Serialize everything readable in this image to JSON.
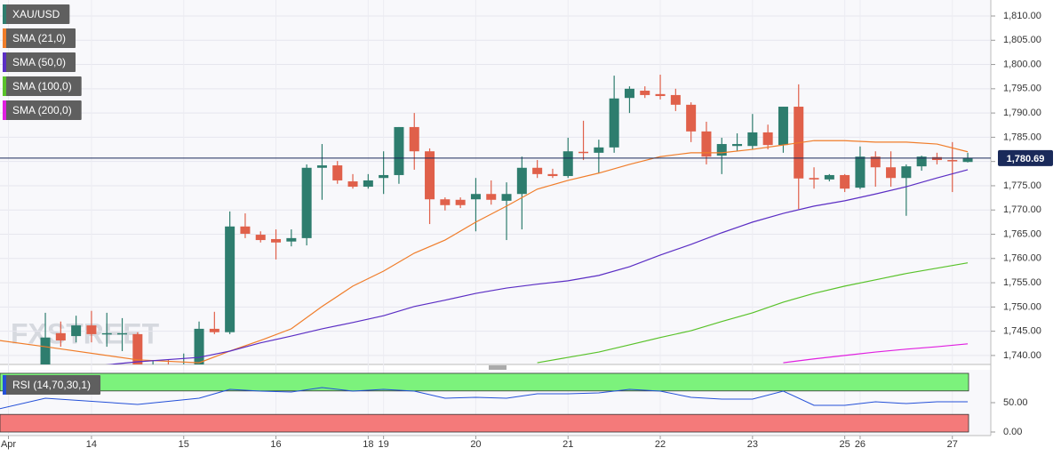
{
  "chart_data": {
    "type": "candlestick",
    "watermark": "FXSTREET",
    "xlim": [
      -2.95,
      61.5
    ],
    "ylim": [
      1738.15,
      1813.3
    ],
    "grid": true,
    "yticks": [
      {
        "value": 1810,
        "label": "1,810.00"
      },
      {
        "value": 1805,
        "label": "1,805.00"
      },
      {
        "value": 1800,
        "label": "1,800.00"
      },
      {
        "value": 1795,
        "label": "1,795.00"
      },
      {
        "value": 1790,
        "label": "1,790.00"
      },
      {
        "value": 1785,
        "label": "1,785.00"
      },
      {
        "value": 1780,
        "label": "1,780.00"
      },
      {
        "value": 1775,
        "label": "1,775.00"
      },
      {
        "value": 1770,
        "label": "1,770.00"
      },
      {
        "value": 1765,
        "label": "1,765.00"
      },
      {
        "value": 1760,
        "label": "1,760.00"
      },
      {
        "value": 1755,
        "label": "1,755.00"
      },
      {
        "value": 1750,
        "label": "1,750.00"
      },
      {
        "value": 1745,
        "label": "1,745.00"
      },
      {
        "value": 1740,
        "label": "1,740.00"
      }
    ],
    "xticks": [
      {
        "value": -2.4,
        "label": "Apr"
      },
      {
        "value": 3,
        "label": "14"
      },
      {
        "value": 9,
        "label": "15"
      },
      {
        "value": 15,
        "label": "16"
      },
      {
        "value": 21,
        "label": "18"
      },
      {
        "value": 22,
        "label": "19"
      },
      {
        "value": 28,
        "label": "20"
      },
      {
        "value": 34,
        "label": "21"
      },
      {
        "value": 40,
        "label": "22"
      },
      {
        "value": 46,
        "label": "23"
      },
      {
        "value": 52,
        "label": "25"
      },
      {
        "value": 53,
        "label": "26"
      },
      {
        "value": 59,
        "label": "27"
      }
    ],
    "candles": {
      "name": "XAU/USD",
      "color": "#2e7d6e",
      "color_up": "#2e7d6e",
      "color_down": "#e0604a",
      "open": [
        1736.3,
        1744.6,
        1744.0,
        1746.2,
        1744.4,
        1744.4,
        1744.4,
        1737.0,
        1737.4,
        1737.3,
        1738.0,
        1745.5,
        1744.8,
        1766.6,
        1764.9,
        1764.0,
        1763.5,
        1764.2,
        1778.7,
        1779.2,
        1775.9,
        1774.8,
        1776.6,
        1777.2,
        1787.1,
        1782.1,
        1772.2,
        1772.1,
        1772.2,
        1773.3,
        1771.9,
        1773.3,
        1778.7,
        1777.4,
        1777.0,
        1782.0,
        1781.8,
        1782.9,
        1793.1,
        1794.6,
        1793.9,
        1793.7,
        1791.7,
        1786.2,
        1781.2,
        1783.2,
        1783.2,
        1786.0,
        1783.4,
        1791.3,
        1776.6,
        1776.3,
        1777.2,
        1774.6,
        1781.0,
        1778.8,
        1776.6,
        1779.0,
        1780.9,
        1780.3,
        1779.9
      ],
      "close": [
        1743.7,
        1743.1,
        1746.2,
        1744.4,
        1744.6,
        1744.6,
        1737.5,
        1737.5,
        1737.2,
        1738.0,
        1745.5,
        1744.8,
        1766.6,
        1765.1,
        1763.8,
        1763.3,
        1764.2,
        1778.7,
        1779.2,
        1776.1,
        1774.8,
        1776.1,
        1777.2,
        1787.1,
        1782.1,
        1772.2,
        1771.0,
        1771.0,
        1773.3,
        1772.1,
        1773.3,
        1778.7,
        1777.4,
        1777.0,
        1782.1,
        1781.8,
        1782.9,
        1793.0,
        1795.0,
        1793.7,
        1793.5,
        1791.7,
        1786.2,
        1781.0,
        1783.6,
        1783.6,
        1786.0,
        1783.4,
        1791.3,
        1776.5,
        1776.3,
        1777.2,
        1774.4,
        1781.0,
        1778.8,
        1776.6,
        1779.0,
        1781.0,
        1780.3,
        1780.1,
        1780.7
      ],
      "high": [
        1748.8,
        1747.0,
        1748.2,
        1749.2,
        1748.8,
        1747.7,
        1744.8,
        1739.0,
        1739.1,
        1740.4,
        1747.0,
        1749.0,
        1769.7,
        1769.3,
        1765.6,
        1766.0,
        1766.0,
        1779.4,
        1783.6,
        1780.1,
        1777.4,
        1777.4,
        1782.1,
        1787.1,
        1790.0,
        1782.7,
        1772.6,
        1772.6,
        1776.6,
        1776.1,
        1775.7,
        1781.0,
        1780.3,
        1778.5,
        1784.9,
        1788.4,
        1784.5,
        1797.7,
        1795.5,
        1795.5,
        1797.9,
        1795.0,
        1792.2,
        1788.2,
        1784.9,
        1785.8,
        1789.8,
        1787.6,
        1791.3,
        1795.9,
        1778.8,
        1777.4,
        1777.4,
        1783.1,
        1782.1,
        1782.1,
        1779.4,
        1781.2,
        1781.8,
        1784.0,
        1781.8
      ],
      "low": [
        1735.8,
        1741.8,
        1742.7,
        1742.7,
        1741.8,
        1740.9,
        1736.8,
        1735.8,
        1736.0,
        1736.2,
        1737.5,
        1744.4,
        1744.4,
        1764.2,
        1763.3,
        1759.8,
        1762.5,
        1762.7,
        1772.1,
        1775.4,
        1774.4,
        1774.4,
        1773.3,
        1775.4,
        1778.3,
        1767.1,
        1769.9,
        1770.4,
        1765.6,
        1771.1,
        1763.8,
        1766.0,
        1776.6,
        1776.6,
        1776.6,
        1780.3,
        1777.6,
        1781.8,
        1790.0,
        1793.1,
        1792.8,
        1790.4,
        1784.0,
        1779.4,
        1777.4,
        1782.1,
        1782.5,
        1782.5,
        1781.8,
        1770.2,
        1774.4,
        1775.9,
        1773.7,
        1774.3,
        1774.8,
        1774.8,
        1768.8,
        1778.1,
        1779.4,
        1773.7,
        1779.8
      ]
    },
    "series": [
      {
        "name": "SMA (21,0)",
        "color": "#f07d2a",
        "x": [
          -3,
          0,
          6,
          10,
          12,
          14,
          16,
          18,
          20,
          22,
          24,
          26,
          28,
          30,
          32,
          34,
          36,
          38,
          40,
          42,
          44,
          46,
          48,
          50,
          52,
          54,
          56,
          58,
          60
        ],
        "values": [
          1743.1,
          1741.8,
          1739.1,
          1738.5,
          1740.9,
          1743.1,
          1745.5,
          1750.1,
          1754.3,
          1757.4,
          1761.1,
          1763.8,
          1767.5,
          1770.8,
          1774.3,
          1776.1,
          1777.6,
          1779.4,
          1781.0,
          1781.8,
          1781.8,
          1782.5,
          1783.4,
          1784.3,
          1784.3,
          1784.0,
          1784.0,
          1783.6,
          1782.0
        ]
      },
      {
        "name": "SMA (50,0)",
        "color": "#5b2ec4",
        "x": [
          -3,
          0,
          6,
          10,
          12,
          14,
          16,
          18,
          20,
          22,
          24,
          26,
          28,
          30,
          32,
          34,
          36,
          38,
          40,
          42,
          44,
          46,
          48,
          50,
          52,
          54,
          56,
          58,
          60
        ],
        "values": [
          1736.0,
          1736.8,
          1738.7,
          1739.6,
          1740.9,
          1742.6,
          1744.0,
          1745.5,
          1746.8,
          1748.2,
          1750.1,
          1751.4,
          1752.8,
          1753.9,
          1754.7,
          1755.4,
          1756.5,
          1758.3,
          1760.7,
          1762.9,
          1765.3,
          1767.5,
          1769.3,
          1770.8,
          1771.9,
          1773.3,
          1774.8,
          1776.6,
          1778.3
        ]
      },
      {
        "name": "SMA (100,0)",
        "color": "#59c22a",
        "x": [
          -3,
          0,
          6,
          10,
          12,
          14,
          16,
          18,
          20,
          22,
          24,
          26,
          28,
          30,
          32,
          34,
          36,
          38,
          40,
          42,
          44,
          46,
          48,
          50,
          52,
          54,
          56,
          58,
          60
        ],
        "values": [
          null,
          null,
          null,
          null,
          null,
          null,
          null,
          null,
          null,
          null,
          null,
          null,
          null,
          null,
          1738.5,
          1739.6,
          1740.7,
          1742.2,
          1743.7,
          1745.1,
          1747.0,
          1748.8,
          1751.0,
          1752.8,
          1754.3,
          1755.6,
          1756.9,
          1758.0,
          1759.1
        ]
      },
      {
        "name": "SMA (200,0)",
        "color": "#e020e0",
        "x": [
          -3,
          0,
          6,
          10,
          12,
          14,
          16,
          18,
          20,
          22,
          24,
          26,
          28,
          30,
          32,
          34,
          36,
          38,
          40,
          42,
          44,
          46,
          48,
          50,
          52,
          54,
          56,
          58,
          60
        ],
        "values": [
          null,
          null,
          null,
          null,
          null,
          null,
          null,
          null,
          null,
          null,
          null,
          null,
          null,
          null,
          null,
          null,
          null,
          null,
          null,
          null,
          null,
          null,
          1738.5,
          1739.3,
          1740.0,
          1740.7,
          1741.3,
          1741.8,
          1742.4
        ]
      }
    ],
    "last_price": {
      "value": 1780.69,
      "label": "1,780.69",
      "color": "#1a2a5a"
    },
    "rsi": {
      "name": "RSI (14,70,30,1)",
      "color": "#2450d8",
      "ylim": [
        0,
        100
      ],
      "overbought": 70,
      "oversold": 30,
      "overbought_color": "#7cf27c",
      "oversold_color": "#f47a7a",
      "yticks": [
        {
          "value": 50,
          "label": "50.00"
        },
        {
          "value": 0,
          "label": "0.00"
        }
      ],
      "x": [
        -3,
        0,
        6,
        10,
        12,
        14,
        16,
        18,
        20,
        22,
        24,
        26,
        28,
        30,
        32,
        34,
        36,
        38,
        40,
        42,
        44,
        46,
        48,
        50,
        52,
        54,
        56,
        58,
        60
      ],
      "values": [
        39.4,
        57.6,
        47.0,
        57.6,
        72.7,
        69.7,
        68.2,
        75.8,
        69.7,
        72.7,
        69.7,
        57.6,
        59.1,
        57.6,
        65.2,
        65.2,
        66.7,
        72.7,
        69.7,
        59.1,
        56.1,
        56.1,
        69.7,
        45.5,
        45.5,
        51.5,
        48.5,
        51.5,
        51.5
      ]
    }
  }
}
